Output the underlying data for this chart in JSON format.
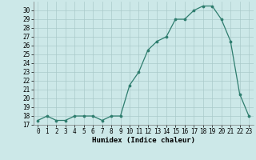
{
  "x": [
    0,
    1,
    2,
    3,
    4,
    5,
    6,
    7,
    8,
    9,
    10,
    11,
    12,
    13,
    14,
    15,
    16,
    17,
    18,
    19,
    20,
    21,
    22,
    23
  ],
  "y": [
    17.5,
    18.0,
    17.5,
    17.5,
    18.0,
    18.0,
    18.0,
    17.5,
    18.0,
    18.0,
    21.5,
    23.0,
    25.5,
    26.5,
    27.0,
    29.0,
    29.0,
    30.0,
    30.5,
    30.5,
    29.0,
    26.5,
    20.5,
    18.0
  ],
  "xlabel": "Humidex (Indice chaleur)",
  "xlim": [
    -0.5,
    23.5
  ],
  "ylim": [
    17,
    31
  ],
  "yticks": [
    17,
    18,
    19,
    20,
    21,
    22,
    23,
    24,
    25,
    26,
    27,
    28,
    29,
    30
  ],
  "xticks": [
    0,
    1,
    2,
    3,
    4,
    5,
    6,
    7,
    8,
    9,
    10,
    11,
    12,
    13,
    14,
    15,
    16,
    17,
    18,
    19,
    20,
    21,
    22,
    23
  ],
  "line_color": "#2e7d6e",
  "marker_color": "#2e7d6e",
  "bg_color": "#cce8e8",
  "grid_color": "#aacaca",
  "label_fontsize": 6.5,
  "tick_fontsize": 5.5
}
